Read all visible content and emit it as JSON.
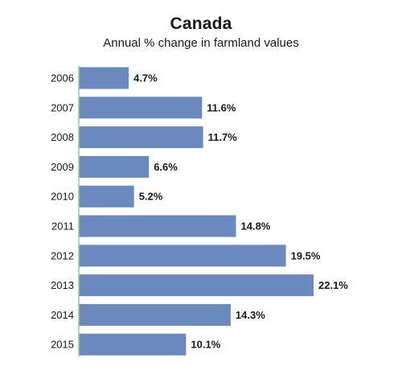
{
  "chart_data": {
    "type": "bar",
    "orientation": "horizontal",
    "title": "Canada",
    "subtitle": "Annual % change in farmland values",
    "xlabel": "",
    "ylabel": "",
    "categories": [
      "2006",
      "2007",
      "2008",
      "2009",
      "2010",
      "2011",
      "2012",
      "2013",
      "2014",
      "2015"
    ],
    "values": [
      4.7,
      11.6,
      11.7,
      6.6,
      5.2,
      14.8,
      19.5,
      22.1,
      14.3,
      10.1
    ],
    "data_labels": [
      "4.7%",
      "11.6%",
      "11.7%",
      "6.6%",
      "5.2%",
      "14.8%",
      "19.5%",
      "22.1%",
      "14.3%",
      "10.1%"
    ],
    "xlim": [
      0,
      22.1
    ],
    "grid": false,
    "legend": "none",
    "bar_color": "#6A89BD",
    "axis_color": "#8FCF9C"
  }
}
